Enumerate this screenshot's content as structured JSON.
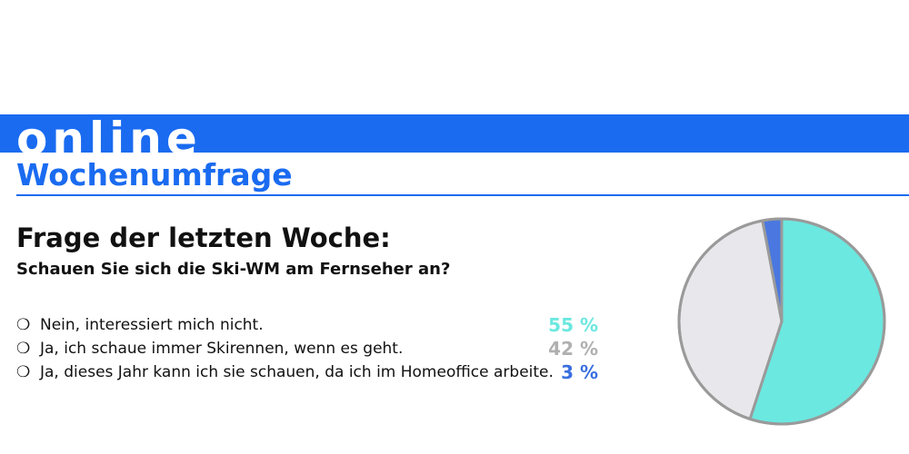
{
  "header": {
    "label": "online",
    "title": "Wochenumfrage"
  },
  "question": {
    "title": "Frage der letzten Woche:",
    "text": "Schauen Sie sich die Ski-WM am Fernseher an?"
  },
  "answers": [
    {
      "marker": "❍",
      "text": "Nein, interessiert mich nicht.",
      "percent_label": "55 %",
      "value": 55,
      "color": "#6be8e0"
    },
    {
      "marker": "❍",
      "text": "Ja, ich schaue immer Skirennen, wenn es geht.",
      "percent_label": "42 %",
      "value": 42,
      "color": "#b0b0b0"
    },
    {
      "marker": "❍",
      "text": "Ja, dieses Jahr kann ich sie schauen, da ich im Homeoffice arbeite.",
      "percent_label": "3 %",
      "value": 3,
      "color": "#3a6fe0"
    }
  ],
  "colors": {
    "brand_blue": "#1a6bf0",
    "pie_outline": "#9a9a9a"
  },
  "chart_data": {
    "type": "pie",
    "categories": [
      "Nein, interessiert mich nicht.",
      "Ja, ich schaue immer Skirennen, wenn es geht.",
      "Ja, dieses Jahr kann ich sie schauen, da ich im Homeoffice arbeite."
    ],
    "values": [
      55,
      42,
      3
    ],
    "colors": [
      "#6be8e0",
      "#e8e8ec",
      "#4a78e0"
    ],
    "start": "top",
    "direction": "clockwise",
    "title": "",
    "legend": "left"
  }
}
